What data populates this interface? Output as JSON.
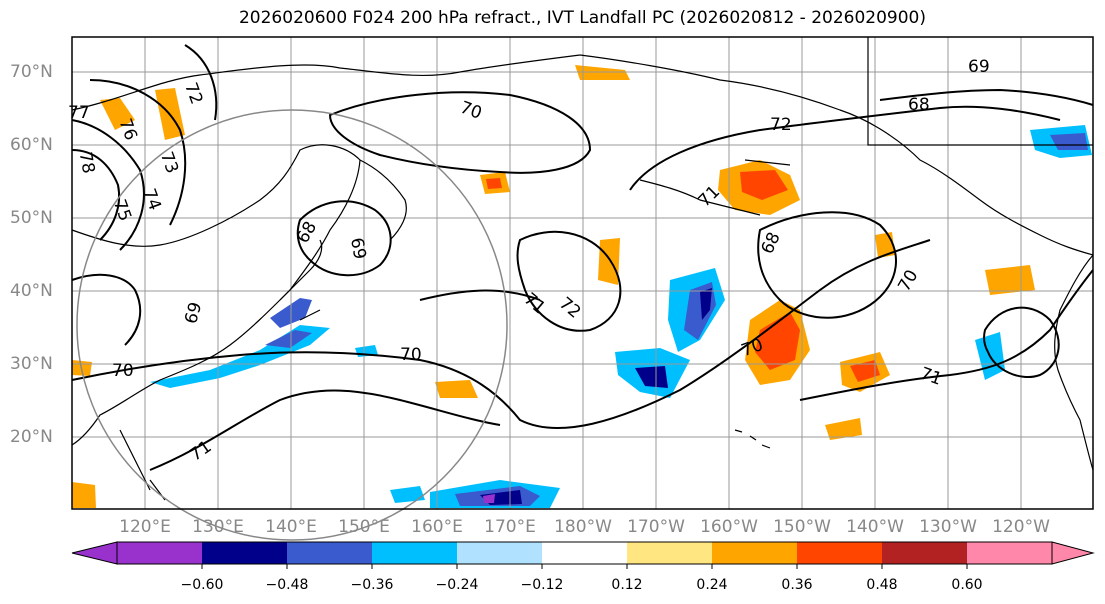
{
  "title": "2026020600 F024 200 hPa refract., IVT Landfall PC (2026020812 - 2026020900)",
  "lat_labels": [
    "70°N",
    "60°N",
    "50°N",
    "40°N",
    "30°N",
    "20°N"
  ],
  "lon_labels": [
    "120°E",
    "130°E",
    "140°E",
    "150°E",
    "160°E",
    "170°E",
    "180°W",
    "170°W",
    "160°W",
    "150°W",
    "140°W",
    "130°W",
    "120°W"
  ],
  "colorbar": {
    "ticks": [
      "−0.60",
      "−0.48",
      "−0.36",
      "−0.24",
      "−0.12",
      "0.12",
      "0.24",
      "0.36",
      "0.48",
      "0.60"
    ],
    "colors": [
      "#9932cc",
      "#00008b",
      "#3a5bcd",
      "#00bfff",
      "#b0e2ff",
      "#ffffff",
      "#ffe680",
      "#ffa500",
      "#ff4500",
      "#b22222",
      "#ff88aa"
    ]
  },
  "contour_labels": [
    "70",
    "71",
    "72",
    "73",
    "74",
    "75",
    "76",
    "77",
    "78",
    "68",
    "69",
    "70",
    "71",
    "72",
    "69",
    "70",
    "71",
    "68",
    "70",
    "72",
    "68",
    "69",
    "70",
    "71"
  ],
  "chart_data": {
    "type": "map",
    "fill_field": "IVT Landfall PC",
    "contour_field": "200 hPa refract.",
    "lat_range": [
      10,
      75
    ],
    "lon_range_east": [
      110,
      250
    ]
  }
}
